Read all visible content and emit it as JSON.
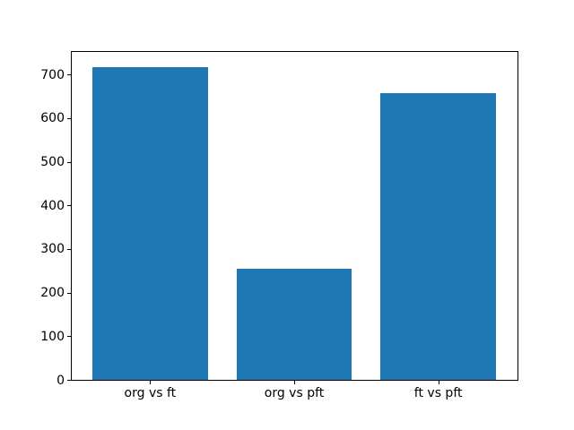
{
  "figure": {
    "background_color": "#ffffff",
    "axes_facecolor": "#ffffff",
    "spine_color": "#000000",
    "tick_color": "#000000",
    "label_color": "#000000"
  },
  "chart_data": {
    "type": "bar",
    "title": "",
    "xlabel": "",
    "ylabel": "",
    "categories": [
      "org vs ft",
      "org vs pft",
      "ft vs pft"
    ],
    "values": [
      718,
      255,
      657
    ],
    "bar_color": "#1f77b4",
    "bar_width_fraction": 0.8,
    "x_positions": [
      0,
      1,
      2
    ],
    "xlim": [
      -0.55,
      2.55
    ],
    "ylim": [
      0,
      754
    ],
    "yticks": [
      0,
      100,
      200,
      300,
      400,
      500,
      600,
      700
    ],
    "grid": false,
    "legend": null
  }
}
